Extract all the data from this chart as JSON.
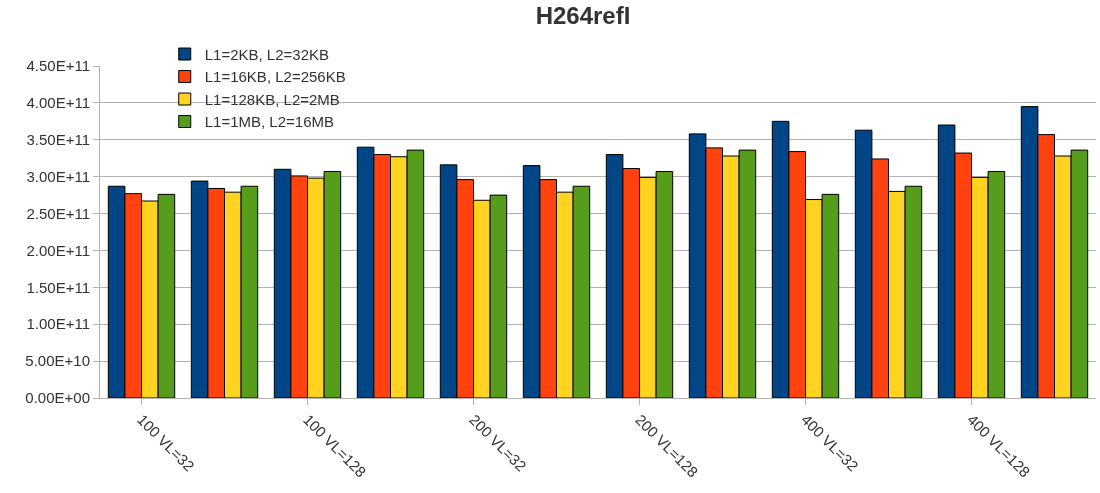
{
  "chart_data": {
    "type": "bar",
    "title": "H264refI",
    "categories": [
      "100 VL=32",
      null,
      "100 VL=128",
      null,
      "200 VL=32",
      null,
      "200 VL=128",
      null,
      "400 VL=32",
      null,
      "400 VL=128",
      null
    ],
    "series": [
      {
        "name": "L1=2KB, L2=32KB",
        "color": "#004586",
        "values": [
          287000000000.0,
          294000000000.0,
          310000000000.0,
          340000000000.0,
          316000000000.0,
          315000000000.0,
          330000000000.0,
          358000000000.0,
          375000000000.0,
          363000000000.0,
          370000000000.0,
          395000000000.0
        ]
      },
      {
        "name": "L1=16KB, L2=256KB",
        "color": "#ff420e",
        "values": [
          277000000000.0,
          284000000000.0,
          301000000000.0,
          330000000000.0,
          296000000000.0,
          296000000000.0,
          311000000000.0,
          339000000000.0,
          334000000000.0,
          324000000000.0,
          332000000000.0,
          357000000000.0
        ]
      },
      {
        "name": "L1=128KB, L2=2MB",
        "color": "#ffd320",
        "values": [
          267000000000.0,
          279000000000.0,
          298000000000.0,
          327000000000.0,
          268000000000.0,
          279000000000.0,
          299000000000.0,
          328000000000.0,
          269000000000.0,
          280000000000.0,
          299000000000.0,
          328000000000.0
        ]
      },
      {
        "name": "L1=1MB, L2=16MB",
        "color": "#579d1c",
        "values": [
          276000000000.0,
          287000000000.0,
          307000000000.0,
          336000000000.0,
          275000000000.0,
          287000000000.0,
          307000000000.0,
          336000000000.0,
          276000000000.0,
          287000000000.0,
          307000000000.0,
          336000000000.0
        ]
      }
    ],
    "ylim": [
      0,
      450000000000.0
    ],
    "yticks": [
      {
        "value": 0,
        "label": "0.00E+00"
      },
      {
        "value": 50000000000.0,
        "label": "5.00E+10"
      },
      {
        "value": 100000000000.0,
        "label": "1.00E+11"
      },
      {
        "value": 150000000000.0,
        "label": "1.50E+11"
      },
      {
        "value": 200000000000.0,
        "label": "2.00E+11"
      },
      {
        "value": 250000000000.0,
        "label": "2.50E+11"
      },
      {
        "value": 300000000000.0,
        "label": "3.00E+11"
      },
      {
        "value": 350000000000.0,
        "label": "3.50E+11"
      },
      {
        "value": 400000000000.0,
        "label": "4.00E+11"
      },
      {
        "value": 450000000000.0,
        "label": "4.50E+11"
      }
    ],
    "grid": "y",
    "legend": "top left"
  }
}
